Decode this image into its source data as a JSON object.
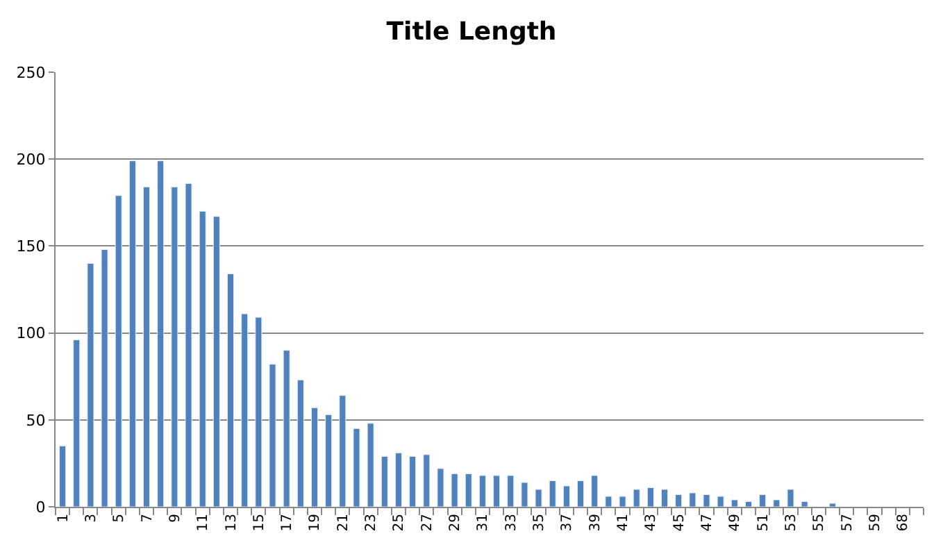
{
  "chart_data": {
    "type": "bar",
    "title": "Title Length",
    "categories": [
      "1",
      null,
      "3",
      null,
      "5",
      null,
      "7",
      null,
      "9",
      null,
      "11",
      null,
      "13",
      null,
      "15",
      null,
      "17",
      null,
      "19",
      null,
      "21",
      null,
      "23",
      null,
      "25",
      null,
      "27",
      null,
      "29",
      null,
      "31",
      null,
      "33",
      null,
      "35",
      null,
      "37",
      null,
      "39",
      null,
      "41",
      null,
      "43",
      null,
      "45",
      null,
      "47",
      null,
      "49",
      null,
      "51",
      null,
      "53",
      null,
      "55",
      null,
      "57",
      null,
      "59",
      null,
      "68",
      null
    ],
    "values": [
      35,
      96,
      140,
      148,
      179,
      199,
      184,
      199,
      184,
      186,
      170,
      167,
      134,
      111,
      109,
      82,
      90,
      73,
      57,
      53,
      64,
      45,
      48,
      29,
      31,
      29,
      30,
      22,
      19,
      19,
      18,
      18,
      18,
      14,
      10,
      15,
      12,
      15,
      18,
      6,
      6,
      10,
      11,
      10,
      7,
      8,
      7,
      6,
      4,
      3,
      7,
      4,
      10,
      3,
      null,
      2,
      null,
      null,
      null,
      null,
      null,
      null
    ],
    "color": "#4f81bd",
    "ylim": [
      0,
      250
    ],
    "yticks": [
      0,
      50,
      100,
      150,
      200,
      250
    ],
    "grid": "y",
    "legend": false
  }
}
